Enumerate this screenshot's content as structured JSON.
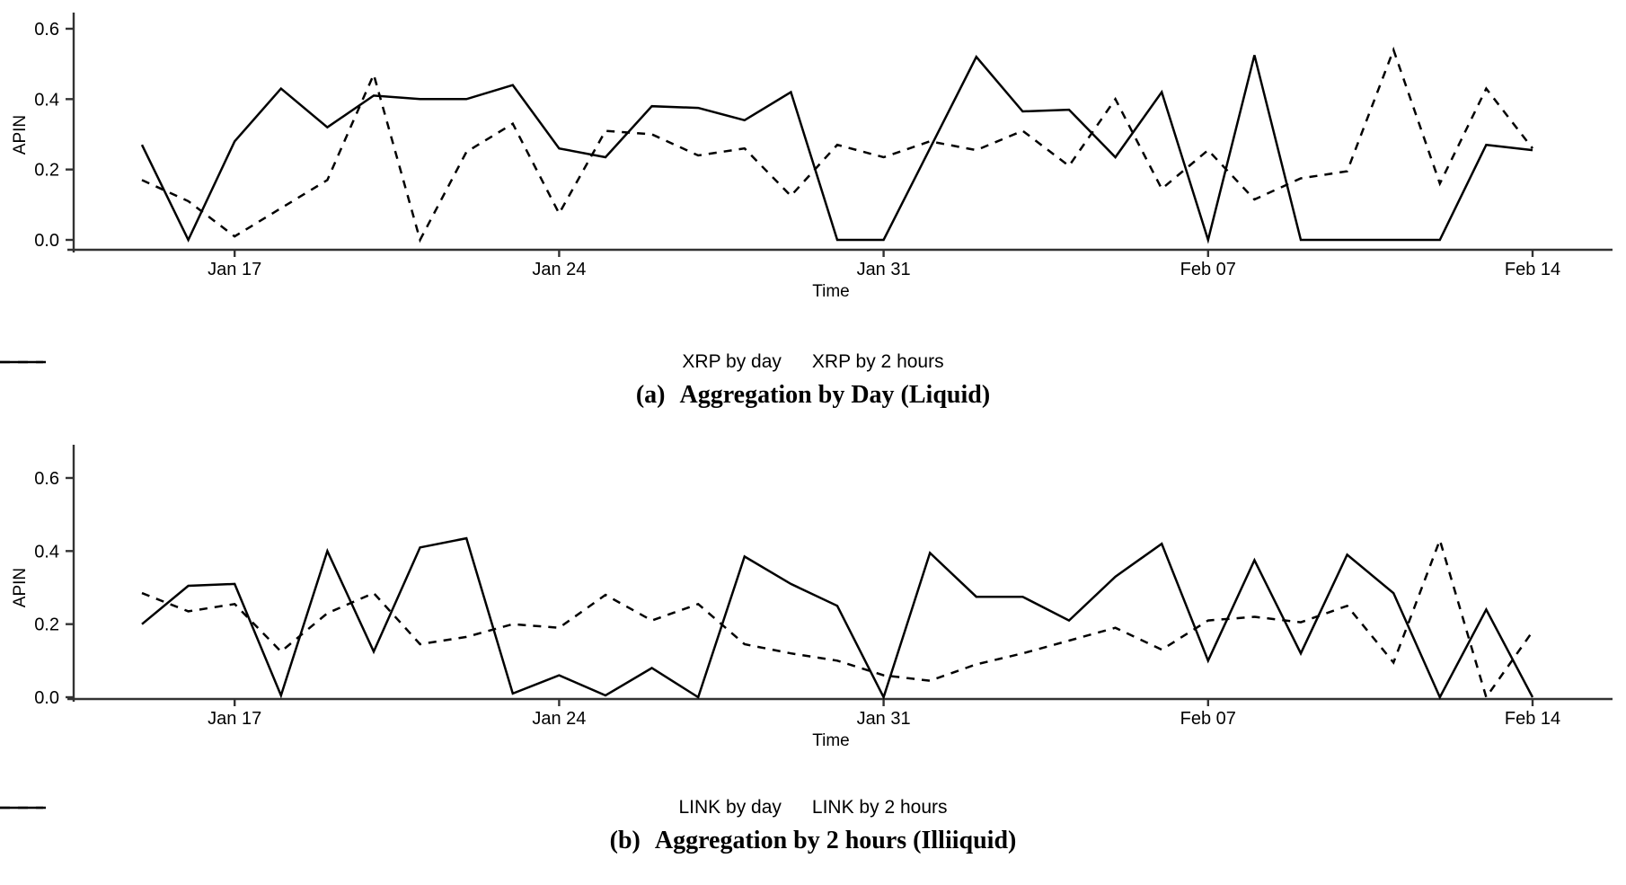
{
  "figure": {
    "background": "#ffffff",
    "line_color": "#000000",
    "axis_color": "#333333"
  },
  "charts": [
    {
      "ylabel": "APIN",
      "xlabel": "Time",
      "yticks": [
        "0.0",
        "0.2",
        "0.4",
        "0.6"
      ],
      "xtick_labels": [
        "Jan 17",
        "Jan 24",
        "Jan 31",
        "Feb 07",
        "Feb 14"
      ],
      "legend": [
        {
          "label": "XRP by day",
          "style": "solid"
        },
        {
          "label": "XRP by 2 hours",
          "style": "dashed"
        }
      ],
      "caption_index": "(a)",
      "caption_text": "Aggregation by Day (Liquid)"
    },
    {
      "ylabel": "APIN",
      "xlabel": "Time",
      "yticks": [
        "0.0",
        "0.2",
        "0.4",
        "0.6"
      ],
      "xtick_labels": [
        "Jan 17",
        "Jan 24",
        "Jan 31",
        "Feb 07",
        "Feb 14"
      ],
      "legend": [
        {
          "label": "LINK by day",
          "style": "solid"
        },
        {
          "label": "LINK by 2 hours",
          "style": "dashed"
        }
      ],
      "caption_index": "(b)",
      "caption_text": "Aggregation by 2 hours (Illiiquid)"
    }
  ],
  "chart_data": [
    {
      "type": "line",
      "title": "",
      "xlabel": "Time",
      "ylabel": "APIN",
      "ylim": [
        0,
        0.6
      ],
      "grid": false,
      "legend_position": "bottom",
      "x": [
        "Jan 15",
        "Jan 16",
        "Jan 17",
        "Jan 18",
        "Jan 19",
        "Jan 20",
        "Jan 21",
        "Jan 22",
        "Jan 23",
        "Jan 24",
        "Jan 25",
        "Jan 26",
        "Jan 27",
        "Jan 28",
        "Jan 29",
        "Jan 30",
        "Jan 31",
        "Feb 01",
        "Feb 02",
        "Feb 03",
        "Feb 04",
        "Feb 05",
        "Feb 06",
        "Feb 07",
        "Feb 08",
        "Feb 09",
        "Feb 10",
        "Feb 11",
        "Feb 12",
        "Feb 13",
        "Feb 14"
      ],
      "xtick_positions": [
        2,
        9,
        16,
        23,
        30
      ],
      "series": [
        {
          "name": "XRP by day",
          "style": "solid",
          "values": [
            0.27,
            0.0,
            0.28,
            0.43,
            0.32,
            0.41,
            0.4,
            0.4,
            0.44,
            0.26,
            0.235,
            0.38,
            0.375,
            0.34,
            0.42,
            0.0,
            0.0,
            0.26,
            0.52,
            0.365,
            0.37,
            0.235,
            0.42,
            0.0,
            0.525,
            0.0,
            0.0,
            0.0,
            0.0,
            0.27,
            0.255
          ]
        },
        {
          "name": "XRP by 2 hours",
          "style": "dashed",
          "values": [
            0.17,
            0.11,
            0.01,
            0.09,
            0.17,
            0.47,
            0.0,
            0.25,
            0.33,
            0.075,
            0.31,
            0.3,
            0.24,
            0.26,
            0.125,
            0.27,
            0.235,
            0.28,
            0.255,
            0.31,
            0.21,
            0.4,
            0.145,
            0.255,
            0.115,
            0.175,
            0.195,
            0.54,
            0.16,
            0.43,
            0.26
          ]
        }
      ]
    },
    {
      "type": "line",
      "title": "",
      "xlabel": "Time",
      "ylabel": "APIN",
      "ylim": [
        0,
        0.6
      ],
      "grid": false,
      "legend_position": "bottom",
      "x": [
        "Jan 15",
        "Jan 16",
        "Jan 17",
        "Jan 18",
        "Jan 19",
        "Jan 20",
        "Jan 21",
        "Jan 22",
        "Jan 23",
        "Jan 24",
        "Jan 25",
        "Jan 26",
        "Jan 27",
        "Jan 28",
        "Jan 29",
        "Jan 30",
        "Jan 31",
        "Feb 01",
        "Feb 02",
        "Feb 03",
        "Feb 04",
        "Feb 05",
        "Feb 06",
        "Feb 07",
        "Feb 08",
        "Feb 09",
        "Feb 10",
        "Feb 11",
        "Feb 12",
        "Feb 13",
        "Feb 14"
      ],
      "xtick_positions": [
        2,
        9,
        16,
        23,
        30
      ],
      "series": [
        {
          "name": "LINK by day",
          "style": "solid",
          "values": [
            0.2,
            0.305,
            0.31,
            0.005,
            0.4,
            0.125,
            0.41,
            0.435,
            0.01,
            0.06,
            0.005,
            0.08,
            0.0,
            0.385,
            0.31,
            0.25,
            0.0,
            0.395,
            0.275,
            0.275,
            0.21,
            0.33,
            0.42,
            0.1,
            0.375,
            0.12,
            0.39,
            0.285,
            0.0,
            0.24,
            0.0
          ]
        },
        {
          "name": "LINK by 2 hours",
          "style": "dashed",
          "values": [
            0.285,
            0.235,
            0.255,
            0.125,
            0.23,
            0.285,
            0.145,
            0.165,
            0.2,
            0.19,
            0.28,
            0.21,
            0.255,
            0.145,
            0.12,
            0.1,
            0.06,
            0.045,
            0.09,
            0.12,
            0.155,
            0.19,
            0.13,
            0.21,
            0.22,
            0.205,
            0.25,
            0.095,
            0.43,
            0.0,
            0.18
          ]
        }
      ]
    }
  ]
}
